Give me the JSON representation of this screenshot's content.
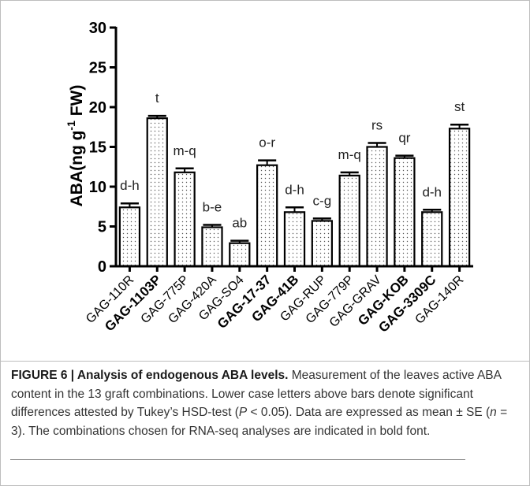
{
  "chart_data": {
    "type": "bar",
    "ylabel_prefix": "ABA(ng g",
    "ylabel_sup": "-1",
    "ylabel_suffix": " FW)",
    "ylim": [
      0,
      30
    ],
    "yticks": [
      "0",
      "5",
      "10",
      "15",
      "20",
      "25",
      "30"
    ],
    "categories": [
      "GAG-110R",
      "GAG-1103P",
      "GAG-775P",
      "GAG-420A",
      "GAG-SO4",
      "GAG-17-37",
      "GAG-41B",
      "GAG-RUP",
      "GAG-779P",
      "GAG-GRAV",
      "GAG-KOB",
      "GAG-3309C",
      "GAG-140R"
    ],
    "bold_categories": [
      false,
      true,
      false,
      false,
      false,
      true,
      true,
      false,
      false,
      false,
      true,
      true,
      false
    ],
    "values": [
      7.4,
      18.6,
      11.8,
      4.9,
      2.9,
      12.7,
      6.8,
      5.7,
      11.4,
      15.0,
      13.6,
      6.8,
      17.3
    ],
    "errors": [
      0.5,
      0.3,
      0.5,
      0.3,
      0.3,
      0.6,
      0.6,
      0.3,
      0.4,
      0.5,
      0.3,
      0.3,
      0.5
    ],
    "letters": [
      "d-h",
      "t",
      "m-q",
      "b-e",
      "ab",
      "o-r",
      "d-h",
      "c-g",
      "m-q",
      "rs",
      "qr",
      "d-h",
      "st"
    ],
    "grid": false,
    "bar_fill": "dotted",
    "colors": {
      "bar_stroke": "#000000",
      "dot": "#555555",
      "axis": "#000000"
    }
  },
  "caption": {
    "label": "FIGURE 6 | Analysis of endogenous ABA levels.",
    "part1": " Measurement of the leaves active ABA content in the 13 graft combinations. Lower case letters above bars denote significant differences attested by Tukey’s HSD-test (",
    "p_var": "P",
    "part2": " < 0.05). Data are expressed as mean ± SE (",
    "n_var": "n",
    "part3": " = 3). The combinations chosen for RNA-seq analyses are indicated in bold font."
  }
}
